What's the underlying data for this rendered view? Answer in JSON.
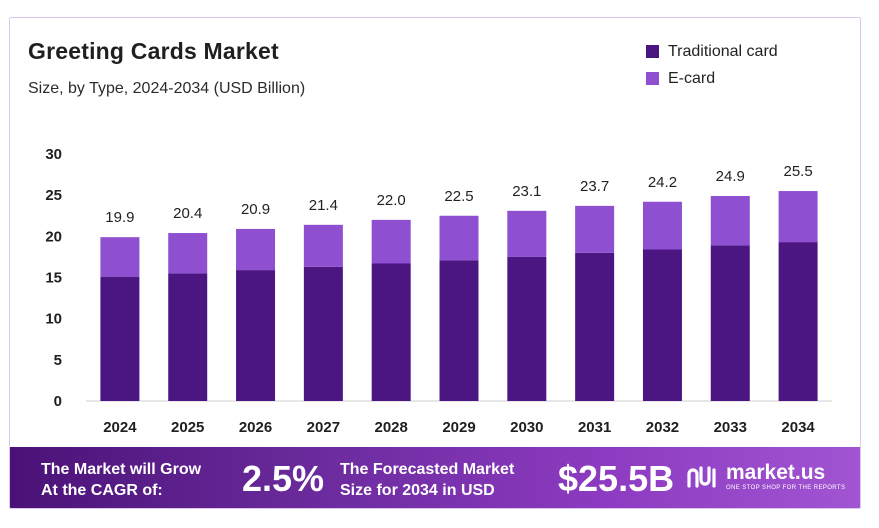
{
  "header": {
    "title": "Greeting Cards Market",
    "subtitle": "Size, by Type, 2024-2034 (USD Billion)"
  },
  "legend": [
    {
      "label": "Traditional card",
      "color": "#4b1682"
    },
    {
      "label": "E-card",
      "color": "#8e4fd0"
    }
  ],
  "chart_data": {
    "type": "bar",
    "stacked": true,
    "categories": [
      "2024",
      "2025",
      "2026",
      "2027",
      "2028",
      "2029",
      "2030",
      "2031",
      "2032",
      "2033",
      "2034"
    ],
    "series": [
      {
        "name": "Traditional card",
        "color": "#4b1682",
        "values": [
          15.1,
          15.5,
          15.9,
          16.3,
          16.7,
          17.1,
          17.5,
          18.0,
          18.4,
          18.9,
          19.3
        ]
      },
      {
        "name": "E-card",
        "color": "#8e4fd0",
        "values": [
          4.8,
          4.9,
          5.0,
          5.1,
          5.3,
          5.4,
          5.6,
          5.7,
          5.8,
          6.0,
          6.2
        ]
      }
    ],
    "totals": [
      "19.9",
      "20.4",
      "20.9",
      "21.4",
      "22.0",
      "22.5",
      "23.1",
      "23.7",
      "24.2",
      "24.9",
      "25.5"
    ],
    "yticks": [
      "0",
      "5",
      "10",
      "15",
      "20",
      "25",
      "30"
    ],
    "ylim": [
      0,
      30
    ],
    "grid": false,
    "legend_position": "top-right"
  },
  "banner": {
    "cagr_label_line1": "The Market will Grow",
    "cagr_label_line2": "At the CAGR of:",
    "cagr_value": "2.5%",
    "forecast_label_line1": "The Forecasted Market",
    "forecast_label_line2": "Size for 2034 in USD",
    "forecast_value": "$25.5B",
    "brand_name": "market.us",
    "brand_tagline": "ONE STOP SHOP FOR THE REPORTS"
  }
}
